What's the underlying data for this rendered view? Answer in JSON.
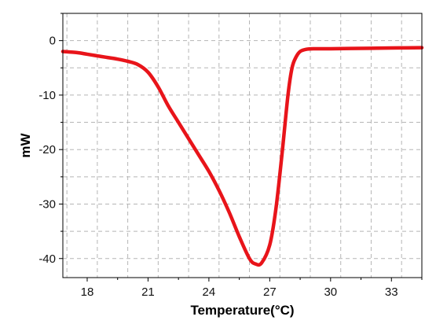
{
  "chart_data": {
    "type": "line",
    "title": "",
    "xlabel": "Temperature(°C)",
    "ylabel": "mW",
    "xlim": [
      16.8,
      34.5
    ],
    "ylim": [
      -43.5,
      5
    ],
    "x_ticks": [
      18,
      21,
      24,
      27,
      30,
      33
    ],
    "y_ticks": [
      0,
      -10,
      -20,
      -30,
      -40
    ],
    "x_tick_labels": [
      "18",
      "21",
      "24",
      "27",
      "30",
      "33"
    ],
    "y_tick_labels": [
      "0",
      "-10",
      "-20",
      "-30",
      "-40"
    ],
    "grid": true,
    "legend": "none",
    "series": [
      {
        "color": "#e8141a",
        "x": [
          16.8,
          17.5,
          18.0,
          18.5,
          19.0,
          19.5,
          20.0,
          20.5,
          21.0,
          21.5,
          22.0,
          22.5,
          23.0,
          23.5,
          24.0,
          24.5,
          25.0,
          25.5,
          26.0,
          26.3,
          26.6,
          27.0,
          27.3,
          27.6,
          27.9,
          28.1,
          28.3,
          28.5,
          28.8,
          29.2,
          30.0,
          31.0,
          32.0,
          33.0,
          34.5
        ],
        "y": [
          -2.0,
          -2.2,
          -2.5,
          -2.8,
          -3.1,
          -3.4,
          -3.8,
          -4.4,
          -5.8,
          -8.5,
          -12.0,
          -15.0,
          -18.0,
          -21.0,
          -24.0,
          -27.5,
          -31.5,
          -36.0,
          -40.0,
          -41.0,
          -40.8,
          -37.5,
          -31.0,
          -21.0,
          -10.0,
          -5.0,
          -3.0,
          -2.0,
          -1.6,
          -1.5,
          -1.5,
          -1.45,
          -1.4,
          -1.35,
          -1.3
        ]
      }
    ]
  }
}
